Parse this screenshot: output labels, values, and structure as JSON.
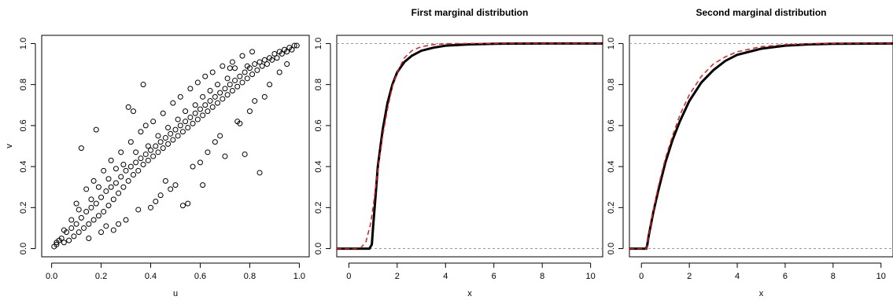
{
  "chart_data": [
    {
      "type": "scatter",
      "title": "",
      "xlabel": "u",
      "ylabel": "v",
      "xlim": [
        0,
        1
      ],
      "ylim": [
        0,
        1
      ],
      "xticks": [
        "0.0",
        "0.2",
        "0.4",
        "0.6",
        "0.8",
        "1.0"
      ],
      "yticks": [
        "0.0",
        "0.2",
        "0.4",
        "0.6",
        "0.8",
        "1.0"
      ],
      "marker": "open-circle",
      "grid": false,
      "points": [
        [
          0.01,
          0.01
        ],
        [
          0.02,
          0.02
        ],
        [
          0.02,
          0.03
        ],
        [
          0.03,
          0.04
        ],
        [
          0.04,
          0.05
        ],
        [
          0.05,
          0.03
        ],
        [
          0.06,
          0.08
        ],
        [
          0.07,
          0.04
        ],
        [
          0.08,
          0.1
        ],
        [
          0.09,
          0.06
        ],
        [
          0.1,
          0.12
        ],
        [
          0.11,
          0.08
        ],
        [
          0.12,
          0.15
        ],
        [
          0.13,
          0.1
        ],
        [
          0.14,
          0.18
        ],
        [
          0.15,
          0.12
        ],
        [
          0.16,
          0.2
        ],
        [
          0.17,
          0.14
        ],
        [
          0.18,
          0.22
        ],
        [
          0.19,
          0.16
        ],
        [
          0.2,
          0.25
        ],
        [
          0.21,
          0.18
        ],
        [
          0.22,
          0.28
        ],
        [
          0.23,
          0.21
        ],
        [
          0.24,
          0.3
        ],
        [
          0.25,
          0.24
        ],
        [
          0.26,
          0.32
        ],
        [
          0.27,
          0.27
        ],
        [
          0.28,
          0.35
        ],
        [
          0.29,
          0.3
        ],
        [
          0.3,
          0.38
        ],
        [
          0.31,
          0.33
        ],
        [
          0.32,
          0.4
        ],
        [
          0.33,
          0.36
        ],
        [
          0.34,
          0.42
        ],
        [
          0.35,
          0.38
        ],
        [
          0.36,
          0.44
        ],
        [
          0.37,
          0.41
        ],
        [
          0.38,
          0.46
        ],
        [
          0.39,
          0.43
        ],
        [
          0.4,
          0.48
        ],
        [
          0.41,
          0.45
        ],
        [
          0.42,
          0.5
        ],
        [
          0.43,
          0.47
        ],
        [
          0.44,
          0.52
        ],
        [
          0.45,
          0.49
        ],
        [
          0.46,
          0.54
        ],
        [
          0.47,
          0.51
        ],
        [
          0.48,
          0.56
        ],
        [
          0.49,
          0.53
        ],
        [
          0.5,
          0.58
        ],
        [
          0.51,
          0.55
        ],
        [
          0.52,
          0.6
        ],
        [
          0.53,
          0.57
        ],
        [
          0.54,
          0.62
        ],
        [
          0.55,
          0.59
        ],
        [
          0.56,
          0.64
        ],
        [
          0.57,
          0.61
        ],
        [
          0.58,
          0.66
        ],
        [
          0.59,
          0.63
        ],
        [
          0.6,
          0.68
        ],
        [
          0.61,
          0.65
        ],
        [
          0.62,
          0.7
        ],
        [
          0.63,
          0.67
        ],
        [
          0.64,
          0.72
        ],
        [
          0.65,
          0.69
        ],
        [
          0.66,
          0.74
        ],
        [
          0.67,
          0.71
        ],
        [
          0.68,
          0.76
        ],
        [
          0.69,
          0.73
        ],
        [
          0.7,
          0.78
        ],
        [
          0.71,
          0.75
        ],
        [
          0.72,
          0.8
        ],
        [
          0.73,
          0.77
        ],
        [
          0.74,
          0.82
        ],
        [
          0.75,
          0.79
        ],
        [
          0.76,
          0.84
        ],
        [
          0.77,
          0.81
        ],
        [
          0.78,
          0.86
        ],
        [
          0.79,
          0.83
        ],
        [
          0.8,
          0.88
        ],
        [
          0.81,
          0.85
        ],
        [
          0.82,
          0.9
        ],
        [
          0.83,
          0.87
        ],
        [
          0.84,
          0.91
        ],
        [
          0.85,
          0.89
        ],
        [
          0.86,
          0.92
        ],
        [
          0.87,
          0.9
        ],
        [
          0.88,
          0.93
        ],
        [
          0.89,
          0.92
        ],
        [
          0.9,
          0.95
        ],
        [
          0.91,
          0.93
        ],
        [
          0.92,
          0.96
        ],
        [
          0.93,
          0.95
        ],
        [
          0.94,
          0.97
        ],
        [
          0.95,
          0.96
        ],
        [
          0.96,
          0.98
        ],
        [
          0.97,
          0.97
        ],
        [
          0.98,
          0.99
        ],
        [
          0.99,
          0.99
        ],
        [
          0.12,
          0.49
        ],
        [
          0.18,
          0.58
        ],
        [
          0.31,
          0.69
        ],
        [
          0.33,
          0.67
        ],
        [
          0.37,
          0.8
        ],
        [
          0.38,
          0.6
        ],
        [
          0.53,
          0.21
        ],
        [
          0.55,
          0.22
        ],
        [
          0.61,
          0.31
        ],
        [
          0.7,
          0.45
        ],
        [
          0.72,
          0.88
        ],
        [
          0.74,
          0.88
        ],
        [
          0.76,
          0.61
        ],
        [
          0.78,
          0.46
        ],
        [
          0.84,
          0.37
        ],
        [
          0.86,
          0.74
        ],
        [
          0.4,
          0.2
        ],
        [
          0.42,
          0.23
        ],
        [
          0.46,
          0.33
        ],
        [
          0.48,
          0.29
        ],
        [
          0.25,
          0.09
        ],
        [
          0.27,
          0.12
        ],
        [
          0.3,
          0.14
        ],
        [
          0.2,
          0.08
        ],
        [
          0.22,
          0.11
        ],
        [
          0.15,
          0.05
        ],
        [
          0.35,
          0.19
        ],
        [
          0.44,
          0.26
        ],
        [
          0.5,
          0.31
        ],
        [
          0.57,
          0.4
        ],
        [
          0.6,
          0.42
        ],
        [
          0.63,
          0.47
        ],
        [
          0.66,
          0.52
        ],
        [
          0.68,
          0.55
        ],
        [
          0.75,
          0.62
        ],
        [
          0.8,
          0.67
        ],
        [
          0.82,
          0.72
        ],
        [
          0.88,
          0.8
        ],
        [
          0.92,
          0.86
        ],
        [
          0.95,
          0.9
        ],
        [
          0.1,
          0.22
        ],
        [
          0.14,
          0.29
        ],
        [
          0.17,
          0.33
        ],
        [
          0.21,
          0.38
        ],
        [
          0.24,
          0.43
        ],
        [
          0.28,
          0.47
        ],
        [
          0.32,
          0.52
        ],
        [
          0.36,
          0.57
        ],
        [
          0.41,
          0.62
        ],
        [
          0.45,
          0.66
        ],
        [
          0.49,
          0.71
        ],
        [
          0.52,
          0.74
        ],
        [
          0.56,
          0.78
        ],
        [
          0.59,
          0.81
        ],
        [
          0.62,
          0.84
        ],
        [
          0.65,
          0.86
        ],
        [
          0.69,
          0.89
        ],
        [
          0.73,
          0.91
        ],
        [
          0.77,
          0.94
        ],
        [
          0.81,
          0.96
        ],
        [
          0.05,
          0.09
        ],
        [
          0.08,
          0.14
        ],
        [
          0.11,
          0.19
        ],
        [
          0.16,
          0.24
        ],
        [
          0.19,
          0.3
        ],
        [
          0.23,
          0.34
        ],
        [
          0.26,
          0.39
        ],
        [
          0.29,
          0.41
        ],
        [
          0.34,
          0.47
        ],
        [
          0.39,
          0.5
        ],
        [
          0.43,
          0.55
        ],
        [
          0.47,
          0.59
        ],
        [
          0.51,
          0.63
        ],
        [
          0.54,
          0.67
        ],
        [
          0.58,
          0.7
        ],
        [
          0.61,
          0.74
        ],
        [
          0.64,
          0.77
        ],
        [
          0.67,
          0.8
        ],
        [
          0.71,
          0.83
        ],
        [
          0.79,
          0.89
        ]
      ]
    },
    {
      "type": "line",
      "title": "First marginal distribution",
      "xlabel": "x",
      "ylabel": "",
      "xlim": [
        -0.5,
        10.5
      ],
      "ylim": [
        0,
        1
      ],
      "xticks": [
        "0",
        "2",
        "4",
        "6",
        "8",
        "10"
      ],
      "yticks": [
        "0.0",
        "0.2",
        "0.4",
        "0.6",
        "0.8",
        "1.0"
      ],
      "hlines": [
        0,
        1
      ],
      "series": [
        {
          "style": "solid-black",
          "x": [
            -0.5,
            0.85,
            0.95,
            1.0,
            1.1,
            1.2,
            1.4,
            1.6,
            1.8,
            2.0,
            2.3,
            2.6,
            3.0,
            3.5,
            4.0,
            5.0,
            6.0,
            8.0,
            10.5
          ],
          "y": [
            0,
            0,
            0.02,
            0.1,
            0.25,
            0.4,
            0.58,
            0.71,
            0.8,
            0.86,
            0.91,
            0.94,
            0.965,
            0.98,
            0.99,
            0.996,
            0.999,
            1.0,
            1.0
          ]
        },
        {
          "style": "dashed-red",
          "x": [
            -0.5,
            0.3,
            0.5,
            0.7,
            0.9,
            1.0,
            1.2,
            1.4,
            1.6,
            1.8,
            2.0,
            2.3,
            2.6,
            3.0,
            3.5,
            4.0,
            5.0,
            6.0,
            8.0,
            10.5
          ],
          "y": [
            0,
            0,
            0.005,
            0.03,
            0.12,
            0.2,
            0.38,
            0.55,
            0.68,
            0.79,
            0.86,
            0.93,
            0.965,
            0.985,
            0.995,
            0.999,
            1.0,
            1.0,
            1.0,
            1.0
          ]
        }
      ]
    },
    {
      "type": "line",
      "title": "Second marginal distribution",
      "xlabel": "x",
      "ylabel": "",
      "xlim": [
        -0.5,
        10.5
      ],
      "ylim": [
        0,
        1
      ],
      "xticks": [
        "0",
        "2",
        "4",
        "6",
        "8",
        "10"
      ],
      "yticks": [
        "0.0",
        "0.2",
        "0.4",
        "0.6",
        "0.8",
        "1.0"
      ],
      "hlines": [
        0,
        1
      ],
      "series": [
        {
          "style": "solid-black",
          "x": [
            -0.5,
            0.2,
            0.25,
            0.3,
            0.5,
            0.7,
            1.0,
            1.3,
            1.6,
            2.0,
            2.5,
            3.0,
            3.5,
            4.0,
            5.0,
            6.0,
            7.0,
            8.0,
            10.5
          ],
          "y": [
            0,
            0,
            0.02,
            0.06,
            0.18,
            0.28,
            0.42,
            0.53,
            0.62,
            0.72,
            0.81,
            0.87,
            0.915,
            0.945,
            0.975,
            0.99,
            0.996,
            0.999,
            1.0
          ]
        },
        {
          "style": "dashed-red",
          "x": [
            -0.5,
            0.2,
            0.25,
            0.3,
            0.5,
            0.7,
            1.0,
            1.3,
            1.6,
            2.0,
            2.5,
            3.0,
            3.5,
            4.0,
            5.0,
            6.0,
            7.0,
            8.0,
            10.5
          ],
          "y": [
            0,
            0,
            0.02,
            0.06,
            0.19,
            0.3,
            0.44,
            0.55,
            0.65,
            0.75,
            0.84,
            0.9,
            0.935,
            0.96,
            0.985,
            0.995,
            0.999,
            1.0,
            1.0
          ]
        }
      ]
    }
  ]
}
